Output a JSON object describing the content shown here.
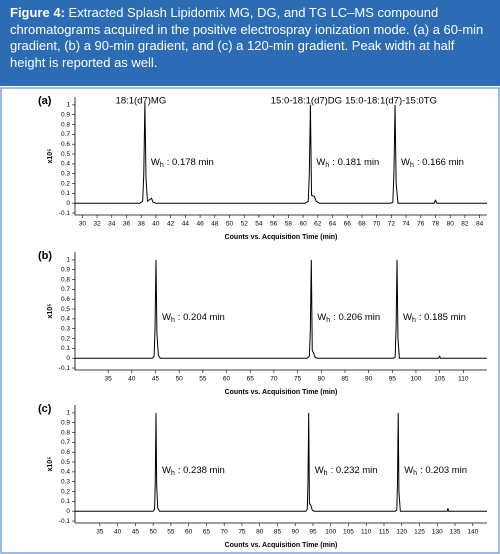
{
  "figure": {
    "label": "Figure 4:",
    "caption": "Extracted Splash Lipidomix MG, DG, and TG LC–MS compound chromatograms acquired in the positive electrospray ionization mode. (a) a 60-min gradient, (b) a 90-min gradient, and (c) a 120-min gradient. Peak width at half height is reported as well."
  },
  "chart_data": [
    {
      "type": "line",
      "panel_label": "(a)",
      "ylabel": "x10⁵",
      "xlabel": "Counts vs. Acquisition Time (min)",
      "color": "#000000",
      "xlim": [
        29,
        85
      ],
      "xticks": [
        30,
        32,
        34,
        36,
        38,
        40,
        42,
        44,
        46,
        48,
        50,
        52,
        54,
        56,
        58,
        60,
        62,
        64,
        66,
        68,
        70,
        72,
        74,
        76,
        78,
        80,
        82,
        84
      ],
      "ylim": [
        -0.12,
        1.08
      ],
      "yticks": [
        -0.1,
        0,
        0.1,
        0.2,
        0.3,
        0.4,
        0.5,
        0.6,
        0.7,
        0.8,
        0.9,
        1
      ],
      "x": [
        29,
        37.8,
        38.2,
        38.35,
        38.5,
        38.65,
        38.85,
        39.4,
        39.6,
        40,
        60.3,
        60.7,
        60.85,
        61,
        61.15,
        61.5,
        61.8,
        62.2,
        71.9,
        72.2,
        72.35,
        72.5,
        72.65,
        72.9,
        77.8,
        78,
        78.2,
        85
      ],
      "values": [
        0,
        0,
        0.02,
        0.3,
        1.02,
        0.25,
        0.02,
        0.05,
        0.01,
        0,
        0,
        0.02,
        0.3,
        1.0,
        0.08,
        0.07,
        0.02,
        0,
        0,
        0.01,
        0.3,
        1.0,
        0.2,
        0,
        0,
        0.03,
        0,
        0
      ],
      "peak_labels": [
        "18:1(d7)MG",
        "15:0-18:1(d7)DG",
        "15:0-18:1(d7)-15:0TG"
      ],
      "annotations": [
        {
          "symbol": "W",
          "subscript": "h",
          "text": ": 0.178 min"
        },
        {
          "symbol": "W",
          "subscript": "h",
          "text": ": 0.181 min"
        },
        {
          "symbol": "W",
          "subscript": "h",
          "text": ": 0.166 min"
        }
      ]
    },
    {
      "type": "line",
      "panel_label": "(b)",
      "ylabel": "x10⁵",
      "xlabel": "Counts vs. Acquisition Time (min)",
      "color": "#000000",
      "xlim": [
        28,
        115
      ],
      "xticks": [
        35,
        40,
        45,
        50,
        55,
        60,
        65,
        70,
        75,
        80,
        85,
        90,
        95,
        100,
        105,
        110
      ],
      "ylim": [
        -0.12,
        1.08
      ],
      "yticks": [
        -0.1,
        0,
        0.1,
        0.2,
        0.3,
        0.4,
        0.5,
        0.6,
        0.7,
        0.8,
        0.9,
        1
      ],
      "x": [
        28,
        44.3,
        44.7,
        44.9,
        45.1,
        45.3,
        45.6,
        46,
        77,
        77.5,
        77.7,
        77.9,
        78.1,
        78.4,
        78.7,
        79.1,
        95.2,
        95.6,
        95.8,
        96,
        96.2,
        96.5,
        104.8,
        105,
        105.2,
        115
      ],
      "values": [
        0,
        0,
        0.02,
        0.3,
        1.0,
        0.25,
        0.03,
        0,
        0,
        0.02,
        0.3,
        1.0,
        0.08,
        0.05,
        0.01,
        0,
        0,
        0.01,
        0.3,
        1.0,
        0.2,
        0,
        0,
        0.02,
        0,
        0
      ],
      "annotations": [
        {
          "symbol": "W",
          "subscript": "h",
          "text": ": 0.204 min"
        },
        {
          "symbol": "W",
          "subscript": "h",
          "text": ": 0.206 min"
        },
        {
          "symbol": "W",
          "subscript": "h",
          "text": ": 0.185 min"
        }
      ]
    },
    {
      "type": "line",
      "panel_label": "(c)",
      "ylabel": "x10⁵",
      "xlabel": "Counts vs. Acquisition Time (min)",
      "color": "#000000",
      "xlim": [
        28,
        144
      ],
      "xticks": [
        35,
        40,
        45,
        50,
        55,
        60,
        65,
        70,
        75,
        80,
        85,
        90,
        95,
        100,
        105,
        110,
        115,
        120,
        125,
        130,
        135,
        140
      ],
      "ylim": [
        -0.12,
        1.08
      ],
      "yticks": [
        -0.1,
        0,
        0.1,
        0.2,
        0.3,
        0.4,
        0.5,
        0.6,
        0.7,
        0.8,
        0.9,
        1
      ],
      "x": [
        28,
        50,
        50.4,
        50.6,
        50.8,
        51,
        51.3,
        51.8,
        93,
        93.4,
        93.6,
        93.8,
        94,
        94.4,
        94.8,
        95.3,
        118.2,
        118.6,
        118.8,
        119,
        119.2,
        119.6,
        132.8,
        133,
        133.2,
        144
      ],
      "values": [
        0,
        0,
        0.02,
        0.3,
        1.0,
        0.25,
        0.03,
        0,
        0,
        0.02,
        0.3,
        1.0,
        0.08,
        0.06,
        0.01,
        0,
        0,
        0.01,
        0.3,
        1.0,
        0.2,
        0,
        0,
        0.03,
        0,
        0
      ],
      "annotations": [
        {
          "symbol": "W",
          "subscript": "h",
          "text": ": 0.238 min"
        },
        {
          "symbol": "W",
          "subscript": "h",
          "text": ": 0.232 min"
        },
        {
          "symbol": "W",
          "subscript": "h",
          "text": ": 0.203 min"
        }
      ]
    }
  ]
}
